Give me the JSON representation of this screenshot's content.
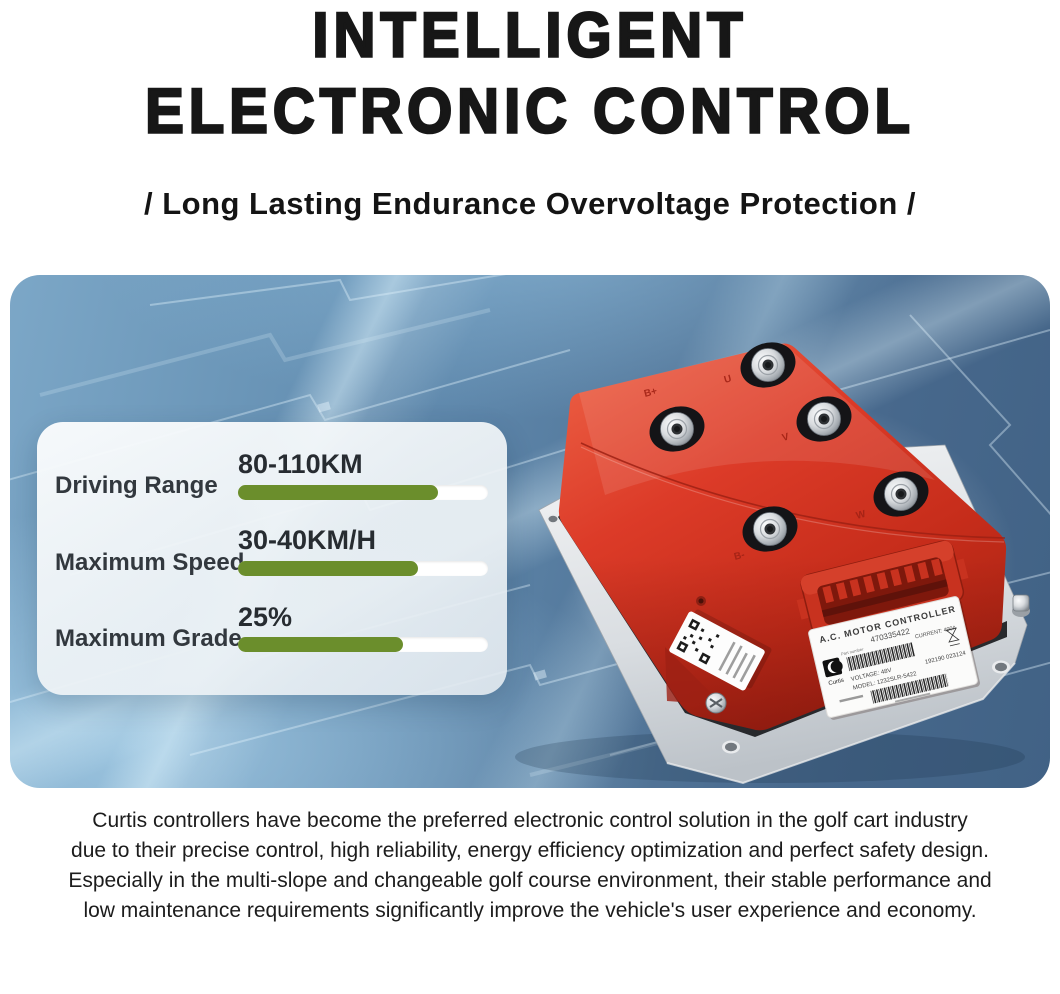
{
  "header": {
    "title_line1": "INTELLIGENT",
    "title_line2": "ELECTRONIC CONTROL",
    "subtitle": "/ Long Lasting Endurance Overvoltage Protection /"
  },
  "hero": {
    "specs_card": {
      "rows": [
        {
          "label": "Driving Range",
          "value": "80-110KM",
          "percent": 80
        },
        {
          "label": "Maximum Speed",
          "value": "30-40KM/H",
          "percent": 72
        },
        {
          "label": "Maximum Grade",
          "value": "25%",
          "percent": 66
        }
      ],
      "bar_color": "#6b8e2c",
      "track_color": "#ffffff"
    },
    "product": {
      "label_title": "A.C. MOTOR CONTROLLER",
      "part_number": "470335422",
      "part_number_caption": "Part number",
      "voltage": "VOLTAGE: 48V",
      "current": "CURRENT: 400A",
      "model": "MODEL: 1232SLR-5422",
      "serial": "192190 023124",
      "brand": "Curtis",
      "terminals": [
        "U",
        "B+",
        "V",
        "B-",
        "W"
      ]
    },
    "colors": {
      "sky_light": "#7ca7c7",
      "sky_mid": "#5d86aa",
      "sky_dark": "#416285",
      "body_red": "#d63a28",
      "plate_silver": "#d9dde1"
    }
  },
  "description": {
    "lines": [
      "Curtis controllers have become the preferred electronic control solution in the golf cart industry",
      "due to their precise control, high reliability, energy efficiency optimization and perfect safety design.",
      "Especially in the multi-slope and changeable golf course environment, their stable performance and",
      "low maintenance requirements significantly improve the vehicle's user experience and economy."
    ]
  }
}
